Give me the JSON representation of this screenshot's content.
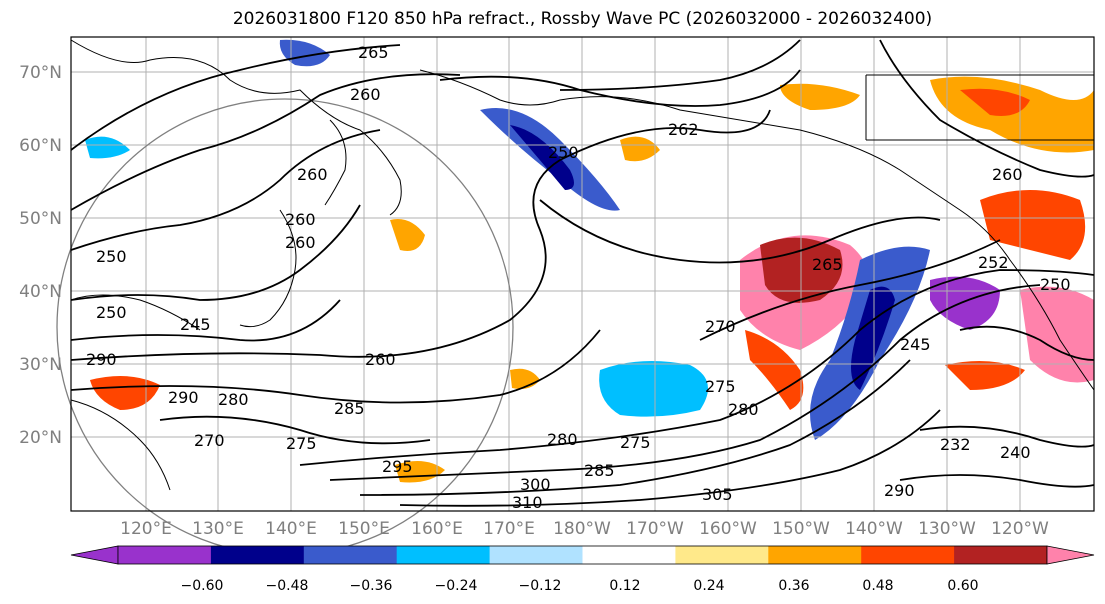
{
  "title": "2026031800 F120 850 hPa refract., Rossby Wave PC (2026032000 - 2026032400)",
  "map": {
    "lat_labels": [
      "70°N",
      "60°N",
      "50°N",
      "40°N",
      "30°N",
      "20°N"
    ],
    "lon_labels": [
      "120°E",
      "130°E",
      "140°E",
      "150°E",
      "160°E",
      "170°E",
      "180°W",
      "170°W",
      "160°W",
      "150°W",
      "140°W",
      "130°W",
      "120°W"
    ],
    "contour_labels": [
      "265",
      "260",
      "260",
      "250",
      "260",
      "260",
      "250",
      "250",
      "245",
      "260",
      "290",
      "290",
      "280",
      "270",
      "275",
      "285",
      "280",
      "295",
      "300",
      "310",
      "270",
      "275",
      "275",
      "280",
      "285",
      "305",
      "290",
      "265",
      "245",
      "232",
      "240",
      "252",
      "260",
      "250",
      "262"
    ]
  },
  "colorbar": {
    "ticks": [
      "−0.60",
      "−0.48",
      "−0.36",
      "−0.24",
      "−0.12",
      "0.12",
      "0.24",
      "0.36",
      "0.48",
      "0.60"
    ],
    "colors": [
      "#9932CC",
      "#00008B",
      "#3A5BCC",
      "#00BFFF",
      "#B0E2FF",
      "#FFFFFF",
      "#FFE98A",
      "#FFA500",
      "#FF4500",
      "#B22222",
      "#FF82AB"
    ]
  }
}
